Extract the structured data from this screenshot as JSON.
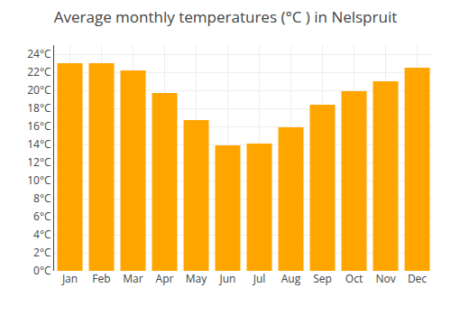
{
  "chart_data": {
    "type": "bar",
    "title": "Average monthly temperatures (°C ) in Nelspruit",
    "categories": [
      "Jan",
      "Feb",
      "Mar",
      "Apr",
      "May",
      "Jun",
      "Jul",
      "Aug",
      "Sep",
      "Oct",
      "Nov",
      "Dec"
    ],
    "values": [
      23.0,
      23.0,
      22.2,
      19.7,
      16.7,
      13.9,
      14.1,
      15.9,
      18.4,
      19.9,
      21.0,
      22.5
    ],
    "color": "#FFA500",
    "ylim": [
      0,
      25
    ],
    "yticks": [
      {
        "value": 0,
        "label": "0°C"
      },
      {
        "value": 2,
        "label": "2°C"
      },
      {
        "value": 4,
        "label": "4°C"
      },
      {
        "value": 6,
        "label": "6°C"
      },
      {
        "value": 8,
        "label": "8°C"
      },
      {
        "value": 10,
        "label": "10°C"
      },
      {
        "value": 12,
        "label": "12°C"
      },
      {
        "value": 14,
        "label": "14°C"
      },
      {
        "value": 16,
        "label": "16°C"
      },
      {
        "value": 18,
        "label": "18°C"
      },
      {
        "value": 20,
        "label": "20°C"
      },
      {
        "value": 22,
        "label": "22°C"
      },
      {
        "value": 24,
        "label": "24°C"
      }
    ],
    "grid": true
  }
}
